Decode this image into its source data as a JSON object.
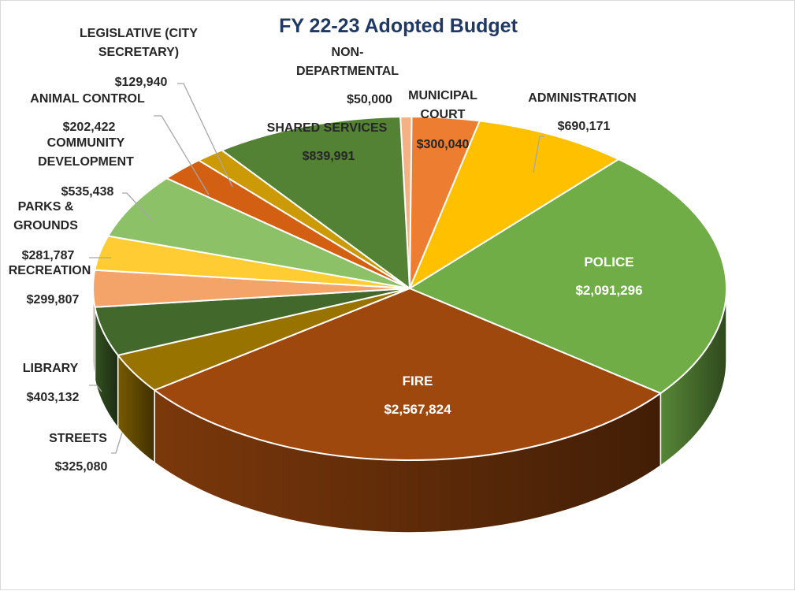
{
  "chart_data": {
    "type": "pie",
    "title": "FY 22-23 Adopted Budget",
    "style": "3D pie",
    "slices": [
      {
        "name": "NON-DEPARTMENTAL",
        "label_lines": [
          "NON-",
          "DEPARTMENTAL"
        ],
        "value_label": "$50,000",
        "value": 50000,
        "color": "#f4b183"
      },
      {
        "name": "MUNICIPAL COURT",
        "label_lines": [
          "MUNICIPAL",
          "COURT"
        ],
        "value_label": "$300,040",
        "value": 300040,
        "color": "#ed7d31"
      },
      {
        "name": "ADMINISTRATION",
        "label_lines": [
          "ADMINISTRATION"
        ],
        "value_label": "$690,171",
        "value": 690171,
        "color": "#ffc000"
      },
      {
        "name": "POLICE",
        "label_lines": [
          "POLICE"
        ],
        "value_label": "$2,091,296",
        "value": 2091296,
        "color": "#70ad47"
      },
      {
        "name": "FIRE",
        "label_lines": [
          "FIRE"
        ],
        "value_label": "$2,567,824",
        "value": 2567824,
        "color": "#9e480e"
      },
      {
        "name": "STREETS",
        "label_lines": [
          "STREETS"
        ],
        "value_label": "$325,080",
        "value": 325080,
        "color": "#997300"
      },
      {
        "name": "LIBRARY",
        "label_lines": [
          "LIBRARY"
        ],
        "value_label": "$403,132",
        "value": 403132,
        "color": "#43682b"
      },
      {
        "name": "RECREATION",
        "label_lines": [
          "RECREATION"
        ],
        "value_label": "$299,807",
        "value": 299807,
        "color": "#f4a469"
      },
      {
        "name": "PARKS & GROUNDS",
        "label_lines": [
          "PARKS &",
          "GROUNDS"
        ],
        "value_label": "$281,787",
        "value": 281787,
        "color": "#ffcd33"
      },
      {
        "name": "COMMUNITY DEVELOPMENT",
        "label_lines": [
          "COMMUNITY",
          "DEVELOPMENT"
        ],
        "value_label": "$535,438",
        "value": 535438,
        "color": "#8cc168"
      },
      {
        "name": "ANIMAL CONTROL",
        "label_lines": [
          "ANIMAL CONTROL"
        ],
        "value_label": "$202,422",
        "value": 202422,
        "color": "#d35f12"
      },
      {
        "name": "LEGISLATIVE (CITY SECRETARY)",
        "label_lines": [
          "LEGISLATIVE (CITY",
          "SECRETARY)"
        ],
        "value_label": "$129,940",
        "value": 129940,
        "color": "#cc9a06"
      },
      {
        "name": "SHARED SERVICES",
        "label_lines": [
          "SHARED SERVICES"
        ],
        "value_label": "$839,991",
        "value": 839991,
        "color": "#548235"
      }
    ],
    "legend": "none",
    "data_labels": "category name and value"
  }
}
